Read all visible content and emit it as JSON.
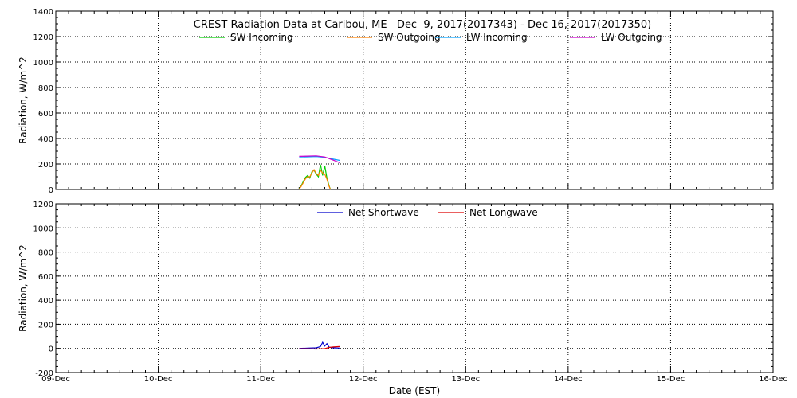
{
  "chart_data": [
    {
      "type": "line",
      "title": "CREST Radiation Data at Caribou, ME   Dec  9, 2017(2017343) - Dec 16, 2017(2017350)",
      "xlabel": "",
      "ylabel": "Radiation, W/m^2",
      "xlim": [
        "2017-12-09",
        "2017-12-16"
      ],
      "ylim": [
        0,
        1400
      ],
      "y_ticks": [
        0,
        200,
        400,
        600,
        800,
        1000,
        1200,
        1400
      ],
      "x_tick_labels": [
        "09-Dec",
        "10-Dec",
        "11-Dec",
        "12-Dec",
        "13-Dec",
        "14-Dec",
        "15-Dec",
        "16-Dec"
      ],
      "grid": true,
      "legend": "top",
      "series": [
        {
          "name": "SW Incoming",
          "color": "#00cc00",
          "x": [
            "2017-12-11T09:00",
            "2017-12-11T09:30",
            "2017-12-11T10:00",
            "2017-12-11T10:30",
            "2017-12-11T11:00",
            "2017-12-11T11:30",
            "2017-12-11T12:00",
            "2017-12-11T12:30",
            "2017-12-11T13:00",
            "2017-12-11T13:30",
            "2017-12-11T14:00",
            "2017-12-11T14:30",
            "2017-12-11T15:00",
            "2017-12-11T15:30",
            "2017-12-11T16:00",
            "2017-12-11T16:20"
          ],
          "values": [
            5,
            30,
            65,
            95,
            110,
            90,
            140,
            150,
            120,
            100,
            195,
            110,
            185,
            90,
            30,
            0
          ]
        },
        {
          "name": "SW Outgoing",
          "color": "#ff8000",
          "x": [
            "2017-12-11T09:00",
            "2017-12-11T09:30",
            "2017-12-11T10:00",
            "2017-12-11T10:30",
            "2017-12-11T11:00",
            "2017-12-11T11:30",
            "2017-12-11T12:00",
            "2017-12-11T12:30",
            "2017-12-11T13:00",
            "2017-12-11T13:30",
            "2017-12-11T14:00",
            "2017-12-11T14:30",
            "2017-12-11T15:00",
            "2017-12-11T15:30",
            "2017-12-11T16:00",
            "2017-12-11T16:20"
          ],
          "values": [
            3,
            25,
            55,
            85,
            100,
            100,
            130,
            155,
            125,
            110,
            150,
            130,
            120,
            80,
            25,
            0
          ]
        },
        {
          "name": "LW Incoming",
          "color": "#00a0ff",
          "x": [
            "2017-12-11T09:00",
            "2017-12-11T11:00",
            "2017-12-11T13:00",
            "2017-12-11T15:00",
            "2017-12-11T17:00",
            "2017-12-11T18:30"
          ],
          "values": [
            255,
            256,
            258,
            252,
            238,
            228
          ]
        },
        {
          "name": "LW Outgoing",
          "color": "#cc00cc",
          "x": [
            "2017-12-11T09:00",
            "2017-12-11T11:00",
            "2017-12-11T13:00",
            "2017-12-11T15:00",
            "2017-12-11T17:00",
            "2017-12-11T18:30"
          ],
          "values": [
            260,
            262,
            264,
            255,
            230,
            210
          ]
        }
      ]
    },
    {
      "type": "line",
      "title": "",
      "xlabel": "Date (EST)",
      "ylabel": "Radiation, W/m^2",
      "xlim": [
        "2017-12-09",
        "2017-12-16"
      ],
      "ylim": [
        -200,
        1200
      ],
      "y_ticks": [
        -200,
        0,
        200,
        400,
        600,
        800,
        1000,
        1200
      ],
      "x_tick_labels": [
        "09-Dec",
        "10-Dec",
        "11-Dec",
        "12-Dec",
        "13-Dec",
        "14-Dec",
        "15-Dec",
        "16-Dec"
      ],
      "grid": true,
      "legend": "top",
      "series": [
        {
          "name": "Net Shortwave",
          "color": "#0000cc",
          "x": [
            "2017-12-11T09:00",
            "2017-12-11T11:00",
            "2017-12-11T13:00",
            "2017-12-11T14:00",
            "2017-12-11T14:30",
            "2017-12-11T15:00",
            "2017-12-11T15:30",
            "2017-12-11T16:00",
            "2017-12-11T17:00",
            "2017-12-11T18:30"
          ],
          "values": [
            0,
            2,
            5,
            15,
            50,
            20,
            40,
            10,
            5,
            3
          ]
        },
        {
          "name": "Net Longwave",
          "color": "#dd0000",
          "x": [
            "2017-12-11T09:00",
            "2017-12-11T11:00",
            "2017-12-11T13:00",
            "2017-12-11T15:00",
            "2017-12-11T16:00",
            "2017-12-11T17:00",
            "2017-12-11T18:30"
          ],
          "values": [
            -3,
            -3,
            -5,
            -2,
            8,
            12,
            15
          ]
        }
      ]
    }
  ]
}
